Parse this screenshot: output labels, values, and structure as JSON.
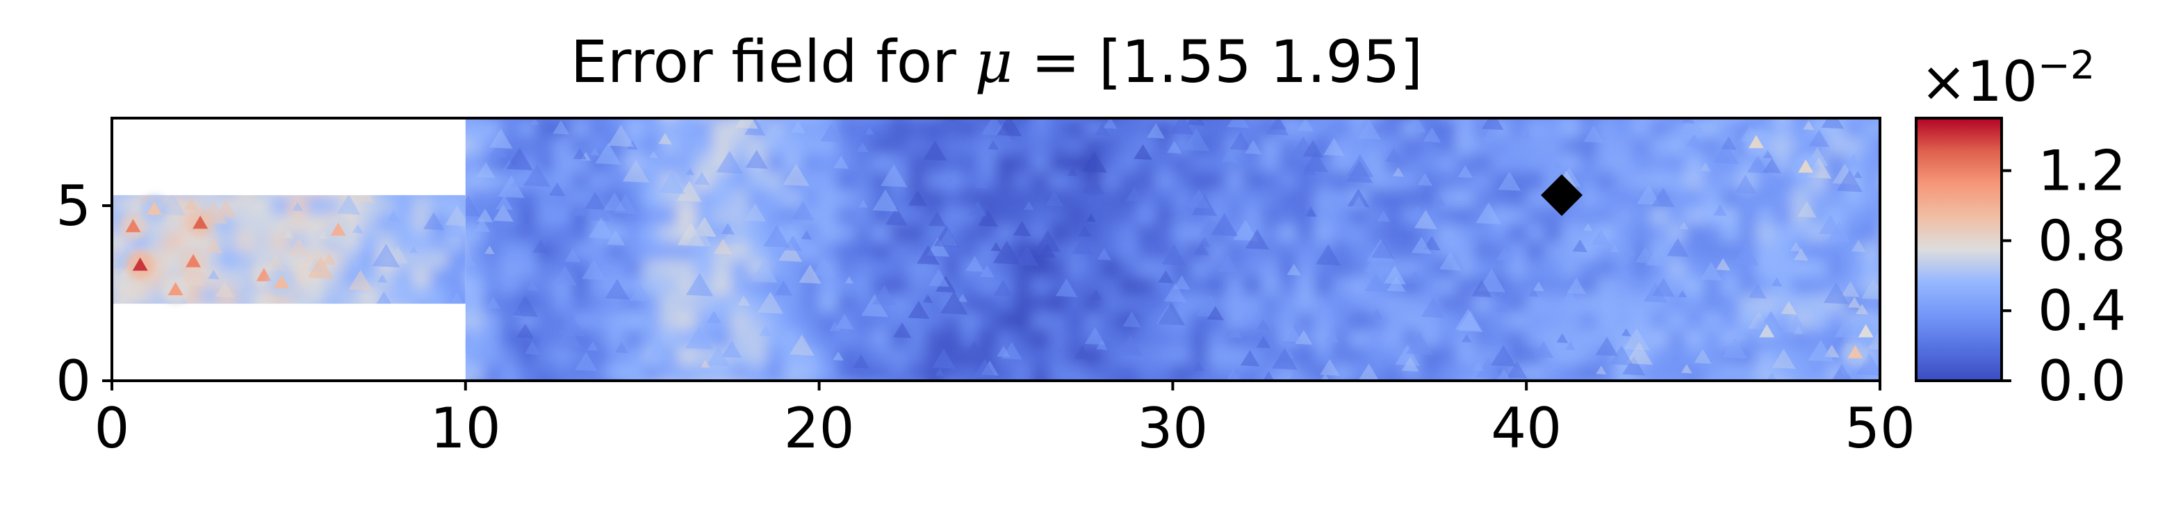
{
  "chart_data": {
    "type": "heatmap",
    "title": {
      "prefix": "Error field for ",
      "symbol": "μ",
      "suffix": " = [1.55 1.95]"
    },
    "parameter": [
      1.55,
      1.95
    ],
    "xlim": [
      0,
      50
    ],
    "ylim": [
      0,
      7.5
    ],
    "x_ticks": [
      0,
      10,
      20,
      30,
      40,
      50
    ],
    "x_tick_labels": [
      "0",
      "10",
      "20",
      "30",
      "40",
      "50"
    ],
    "y_ticks": [
      0,
      5
    ],
    "y_tick_labels": [
      "0",
      "5"
    ],
    "domain": {
      "inlet_channel": {
        "x": [
          0,
          10
        ],
        "y": [
          2.2,
          5.3
        ]
      },
      "main_channel": {
        "x": [
          10,
          50
        ],
        "y": [
          0,
          7.5
        ]
      }
    },
    "marker": {
      "shape": "diamond",
      "x": 41,
      "y": 5.3,
      "color": "#000000"
    },
    "colorbar": {
      "colormap": "coolwarm",
      "range": [
        0.0,
        1.5
      ],
      "ticks": [
        0.0,
        0.4,
        0.8,
        1.2
      ],
      "tick_labels": [
        "0.0",
        "0.4",
        "0.8",
        "1.2"
      ],
      "scale_label": {
        "base": "×10",
        "exponent": "−2"
      }
    },
    "field_profile": {
      "description_values_x": [
        0,
        2,
        4,
        6,
        8,
        10,
        12,
        14,
        16,
        18,
        20,
        22,
        24,
        26,
        28,
        30,
        32,
        34,
        36,
        38,
        40,
        42,
        44,
        46,
        48,
        50
      ],
      "mean_error": [
        0.65,
        0.75,
        0.7,
        0.7,
        0.6,
        0.5,
        0.25,
        0.35,
        0.6,
        0.55,
        0.4,
        0.25,
        0.2,
        0.15,
        0.15,
        0.25,
        0.3,
        0.35,
        0.35,
        0.35,
        0.35,
        0.4,
        0.45,
        0.45,
        0.5,
        0.45
      ],
      "hotspots": [
        {
          "x": 0.8,
          "y": 3.3,
          "value": 1.4
        },
        {
          "x": 2.5,
          "y": 4.5,
          "value": 1.3
        },
        {
          "x": 0.6,
          "y": 4.4,
          "value": 1.2
        },
        {
          "x": 2.3,
          "y": 3.4,
          "value": 1.2
        },
        {
          "x": 1.8,
          "y": 2.6,
          "value": 1.1
        },
        {
          "x": 4.3,
          "y": 3.0,
          "value": 1.1
        },
        {
          "x": 6.4,
          "y": 4.3,
          "value": 1.0
        },
        {
          "x": 4.8,
          "y": 2.8,
          "value": 0.95
        },
        {
          "x": 1.2,
          "y": 4.9,
          "value": 0.9
        },
        {
          "x": 49.3,
          "y": 0.8,
          "value": 0.9
        },
        {
          "x": 46.5,
          "y": 6.8,
          "value": 0.8
        },
        {
          "x": 47.9,
          "y": 6.1,
          "value": 0.8
        },
        {
          "x": 49.6,
          "y": 1.4,
          "value": 0.75
        },
        {
          "x": 46.8,
          "y": 1.4,
          "value": 0.7
        }
      ]
    },
    "colors": {
      "axes_edge": "#000000",
      "background": "#ffffff"
    }
  }
}
